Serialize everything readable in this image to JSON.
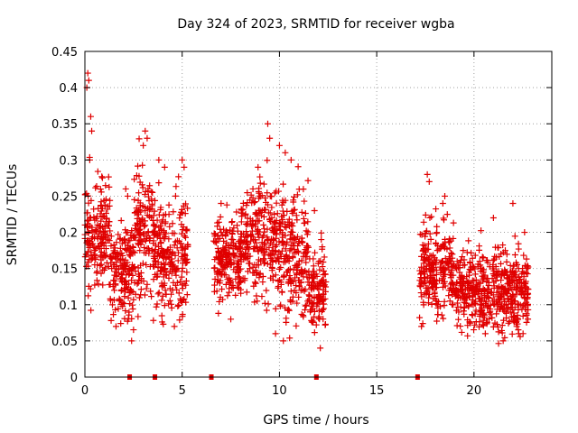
{
  "chart_data": {
    "type": "scatter",
    "title": "Day 324 of 2023, SRMTID for receiver wgba",
    "xlabel": "GPS time / hours",
    "ylabel": "SRMTID / TECUs",
    "xlim": [
      0,
      24
    ],
    "ylim": [
      0,
      0.45
    ],
    "xticks": [
      0,
      5,
      10,
      15,
      20
    ],
    "xtick_labels": [
      "0",
      "5",
      "10",
      "15",
      "20"
    ],
    "yticks": [
      0,
      0.05,
      0.1,
      0.15,
      0.2,
      0.25,
      0.3,
      0.35,
      0.4,
      0.45
    ],
    "ytick_labels": [
      "0",
      "0.05",
      "0.1",
      "0.15",
      "0.2",
      "0.25",
      "0.3",
      "0.35",
      "0.4",
      "0.45"
    ],
    "grid": true,
    "marker": "plus",
    "color": "#e00000",
    "series": [
      {
        "name": "SRMTID",
        "segments": [
          {
            "x_start": 0.0,
            "x_end": 1.3,
            "y_center": 0.19,
            "y_spread": 0.07,
            "outliers": [
              [
                0.1,
                0.4
              ],
              [
                0.15,
                0.42
              ],
              [
                0.2,
                0.41
              ],
              [
                0.3,
                0.36
              ],
              [
                0.35,
                0.34
              ],
              [
                0.25,
                0.3
              ]
            ]
          },
          {
            "x_start": 1.3,
            "x_end": 2.5,
            "y_center": 0.15,
            "y_spread": 0.06,
            "outliers": [
              [
                2.1,
                0.26
              ],
              [
                2.2,
                0.25
              ],
              [
                1.6,
                0.07
              ]
            ]
          },
          {
            "x_start": 2.5,
            "x_end": 3.5,
            "y_center": 0.2,
            "y_spread": 0.08,
            "outliers": [
              [
                3.1,
                0.34
              ],
              [
                3.2,
                0.33
              ],
              [
                3.0,
                0.32
              ],
              [
                2.4,
                0.05
              ]
            ]
          },
          {
            "x_start": 3.5,
            "x_end": 5.3,
            "y_center": 0.17,
            "y_spread": 0.07,
            "outliers": [
              [
                3.8,
                0.3
              ],
              [
                4.1,
                0.29
              ],
              [
                5.0,
                0.3
              ],
              [
                5.1,
                0.29
              ],
              [
                4.6,
                0.07
              ]
            ]
          },
          {
            "x_start": 6.6,
            "x_end": 8.0,
            "y_center": 0.16,
            "y_spread": 0.05,
            "outliers": [
              [
                7.0,
                0.24
              ],
              [
                7.5,
                0.08
              ]
            ]
          },
          {
            "x_start": 8.0,
            "x_end": 10.0,
            "y_center": 0.19,
            "y_spread": 0.07,
            "outliers": [
              [
                9.4,
                0.35
              ],
              [
                9.5,
                0.33
              ],
              [
                8.9,
                0.29
              ],
              [
                9.8,
                0.06
              ]
            ]
          },
          {
            "x_start": 10.0,
            "x_end": 11.5,
            "y_center": 0.17,
            "y_spread": 0.08,
            "outliers": [
              [
                10.0,
                0.32
              ],
              [
                10.3,
                0.31
              ],
              [
                10.6,
                0.3
              ],
              [
                10.2,
                0.05
              ]
            ]
          },
          {
            "x_start": 11.5,
            "x_end": 12.4,
            "y_center": 0.12,
            "y_spread": 0.05,
            "outliers": [
              [
                11.8,
                0.23
              ],
              [
                12.2,
                0.18
              ],
              [
                12.1,
                0.04
              ]
            ]
          },
          {
            "x_start": 17.2,
            "x_end": 19.0,
            "y_center": 0.15,
            "y_spread": 0.06,
            "outliers": [
              [
                17.6,
                0.28
              ],
              [
                17.7,
                0.27
              ],
              [
                18.5,
                0.25
              ],
              [
                18.4,
                0.24
              ],
              [
                17.3,
                0.07
              ]
            ]
          },
          {
            "x_start": 19.0,
            "x_end": 22.8,
            "y_center": 0.12,
            "y_spread": 0.05,
            "outliers": [
              [
                21.0,
                0.22
              ],
              [
                22.0,
                0.24
              ],
              [
                22.6,
                0.2
              ],
              [
                21.5,
                0.05
              ],
              [
                22.3,
                0.06
              ]
            ]
          }
        ]
      }
    ],
    "axis_markers": {
      "description": "small red squares on the x-axis",
      "x": [
        2.3,
        3.6,
        6.5,
        11.9,
        17.1
      ]
    }
  }
}
